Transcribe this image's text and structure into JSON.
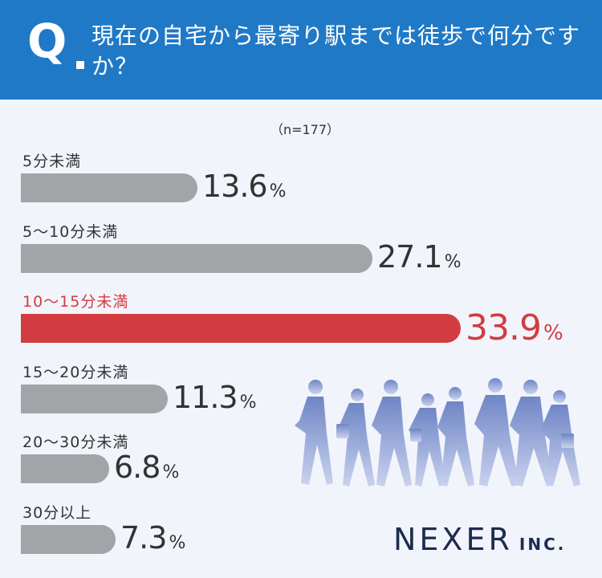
{
  "question": {
    "mark": "Q",
    "text": "現在の自宅から最寄り駅までは徒歩で何分ですか？"
  },
  "sample_size": "（n=177）",
  "brand": {
    "name": "NEXER",
    "suffix": "INC."
  },
  "colors": {
    "header": "#1f79c6",
    "bar": "#a3a4a8",
    "highlight": "#d23c40",
    "background": "#f2f4fb"
  },
  "chart_data": {
    "type": "bar",
    "orientation": "horizontal",
    "categories": [
      "5分未満",
      "5〜10分未満",
      "10〜15分未満",
      "15〜20分未満",
      "20〜30分未満",
      "30分以上"
    ],
    "values": [
      13.6,
      27.1,
      33.9,
      11.3,
      6.8,
      7.3
    ],
    "value_suffix": "%",
    "highlight_index": 2,
    "grid": false
  }
}
